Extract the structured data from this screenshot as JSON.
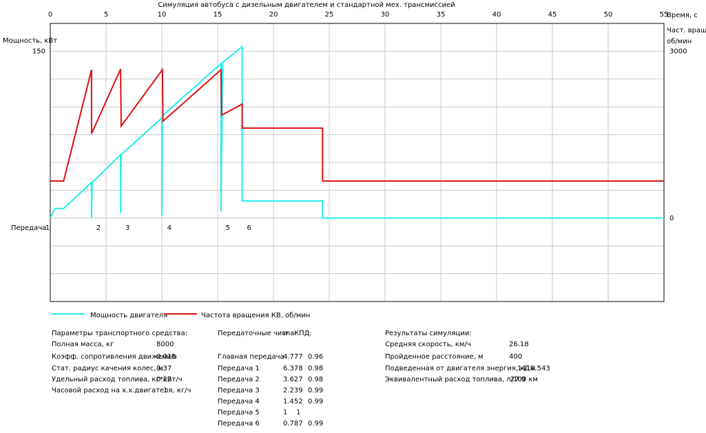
{
  "chart_data": {
    "type": "line",
    "title": "Симуляция автобуса с дизельным двигателем и стандартной мех. трансмиссией",
    "x_label": "Время, с",
    "y_label": "Мощность, кВт",
    "y2_label": [
      "Част. вращ.,",
      "об/мин"
    ],
    "gear_axis_label": "Передача",
    "gears": [
      {
        "label": "1",
        "x": 0
      },
      {
        "label": "2",
        "x": 3.7
      },
      {
        "label": "3",
        "x": 6.3
      },
      {
        "label": "4",
        "x": 10.05
      },
      {
        "label": "5",
        "x": 15.3
      },
      {
        "label": "6",
        "x": 17.2
      }
    ],
    "xlim": [
      0,
      55
    ],
    "xticks": [
      0,
      5,
      10,
      15,
      20,
      25,
      30,
      35,
      40,
      45,
      50,
      55
    ],
    "ylim": [
      -75,
      175
    ],
    "yticks": [
      150
    ],
    "ygrid": [
      -50,
      -25,
      0,
      25,
      50,
      75,
      100,
      125,
      150
    ],
    "y2lim": [
      -1500,
      3500
    ],
    "y2ticks": [
      0,
      3000
    ],
    "grid": true,
    "series": [
      {
        "name": "Мощность двигателя",
        "color": "#22eeee",
        "axis": "y",
        "x": [
          0,
          0.4,
          1.2,
          3.7,
          3.7,
          3.75,
          6.3,
          6.3,
          6.35,
          10.0,
          10.0,
          10.05,
          15.3,
          15.3,
          15.45,
          17.2,
          17.2,
          24.4,
          24.4,
          55
        ],
        "values": [
          0,
          8.6,
          8.6,
          32,
          0,
          32,
          57,
          5,
          57,
          90,
          2,
          92,
          139,
          6,
          140,
          154,
          15.4,
          15.4,
          0,
          0
        ]
      },
      {
        "name": "Частота вращения КВ, об/мин",
        "color": "#dd1111",
        "axis": "y2",
        "x": [
          0,
          1.2,
          3.7,
          3.7,
          6.3,
          6.35,
          10.05,
          10.1,
          15.3,
          15.35,
          17.2,
          17.2,
          24.4,
          24.4,
          55
        ],
        "values": [
          667,
          667,
          2667,
          1519,
          2679,
          1654,
          2667,
          1741,
          2667,
          1852,
          2049,
          1617,
          1617,
          667,
          667
        ]
      }
    ]
  },
  "vehicle_params": {
    "title": "Параметры транспортного средства:",
    "rows": [
      [
        "Полная масса, кг",
        8000
      ],
      [
        "Коэфф. сопротивления движению",
        0.015
      ],
      [
        "Стат. радиус качения колес, м",
        0.37
      ],
      [
        "Удельный расход топлива, кг*кВт/ч",
        0.22
      ],
      [
        "Часовой расход на х.х.двигателя, кг/ч",
        1
      ]
    ]
  },
  "transmission": {
    "header": [
      "Передаточные числа",
      "и",
      "КПД:"
    ],
    "rows": [
      [
        "Главная передача",
        4.777,
        0.96
      ],
      [
        "Передача 1",
        6.378,
        0.98
      ],
      [
        "Передача 2",
        3.627,
        0.98
      ],
      [
        "Передача 3",
        2.239,
        0.99
      ],
      [
        "Передача 4",
        1.452,
        0.99
      ],
      [
        "Передача 5",
        1,
        1
      ],
      [
        "Передача 6",
        0.787,
        0.99
      ]
    ]
  },
  "results": {
    "title": "Результаты симуляции:",
    "rows": [
      [
        "Средняя скорость, км/ч",
        26.18
      ],
      [
        "Пройденное расстояние, м",
        400
      ],
      [
        "Подведенная от двигателя энергия, кДж",
        1410.543
      ],
      [
        "Эквивалентный расход топлива, л/100 км",
        27.9
      ]
    ]
  }
}
